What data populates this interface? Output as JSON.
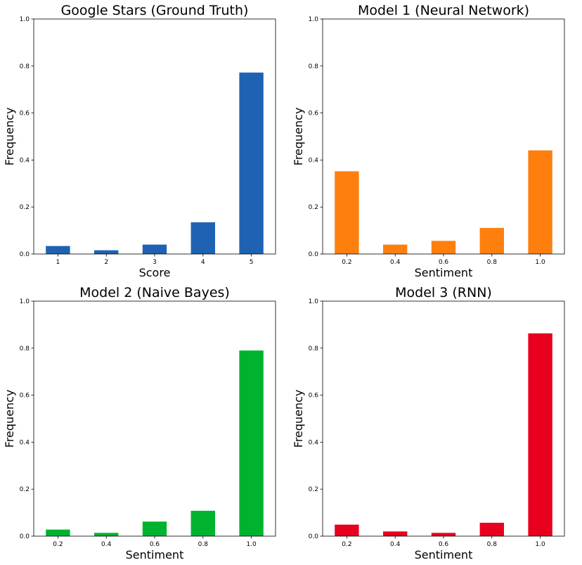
{
  "chart_data": [
    {
      "type": "bar",
      "title": "Google Stars (Ground Truth)",
      "xlabel": "Score",
      "ylabel": "Frequency",
      "categories": [
        "1",
        "2",
        "3",
        "4",
        "5"
      ],
      "values": [
        0.034,
        0.016,
        0.04,
        0.135,
        0.772
      ],
      "ylim": [
        0,
        1.0
      ],
      "yticks": [
        "0.0",
        "0.2",
        "0.4",
        "0.6",
        "0.8",
        "1.0"
      ],
      "color": "#1f62b4",
      "grid": false
    },
    {
      "type": "bar",
      "title": "Model 1 (Neural Network)",
      "xlabel": "Sentiment",
      "ylabel": "Frequency",
      "categories": [
        "0.2",
        "0.4",
        "0.6",
        "0.8",
        "1.0"
      ],
      "values": [
        0.352,
        0.04,
        0.056,
        0.111,
        0.441
      ],
      "ylim": [
        0,
        1.0
      ],
      "yticks": [
        "0.0",
        "0.2",
        "0.4",
        "0.6",
        "0.8",
        "1.0"
      ],
      "color": "#ff7f0e",
      "grid": false
    },
    {
      "type": "bar",
      "title": "Model 2 (Naive Bayes)",
      "xlabel": "Sentiment",
      "ylabel": "Frequency",
      "categories": [
        "0.2",
        "0.4",
        "0.6",
        "0.8",
        "1.0"
      ],
      "values": [
        0.028,
        0.014,
        0.062,
        0.108,
        0.79
      ],
      "ylim": [
        0,
        1.0
      ],
      "yticks": [
        "0.0",
        "0.2",
        "0.4",
        "0.6",
        "0.8",
        "1.0"
      ],
      "color": "#00b32f",
      "grid": false
    },
    {
      "type": "bar",
      "title": "Model 3 (RNN)",
      "xlabel": "Sentiment",
      "ylabel": "Frequency",
      "categories": [
        "0.2",
        "0.4",
        "0.6",
        "0.8",
        "1.0"
      ],
      "values": [
        0.049,
        0.02,
        0.014,
        0.057,
        0.863
      ],
      "ylim": [
        0,
        1.0
      ],
      "yticks": [
        "0.0",
        "0.2",
        "0.4",
        "0.6",
        "0.8",
        "1.0"
      ],
      "color": "#e8001e",
      "grid": false
    }
  ]
}
